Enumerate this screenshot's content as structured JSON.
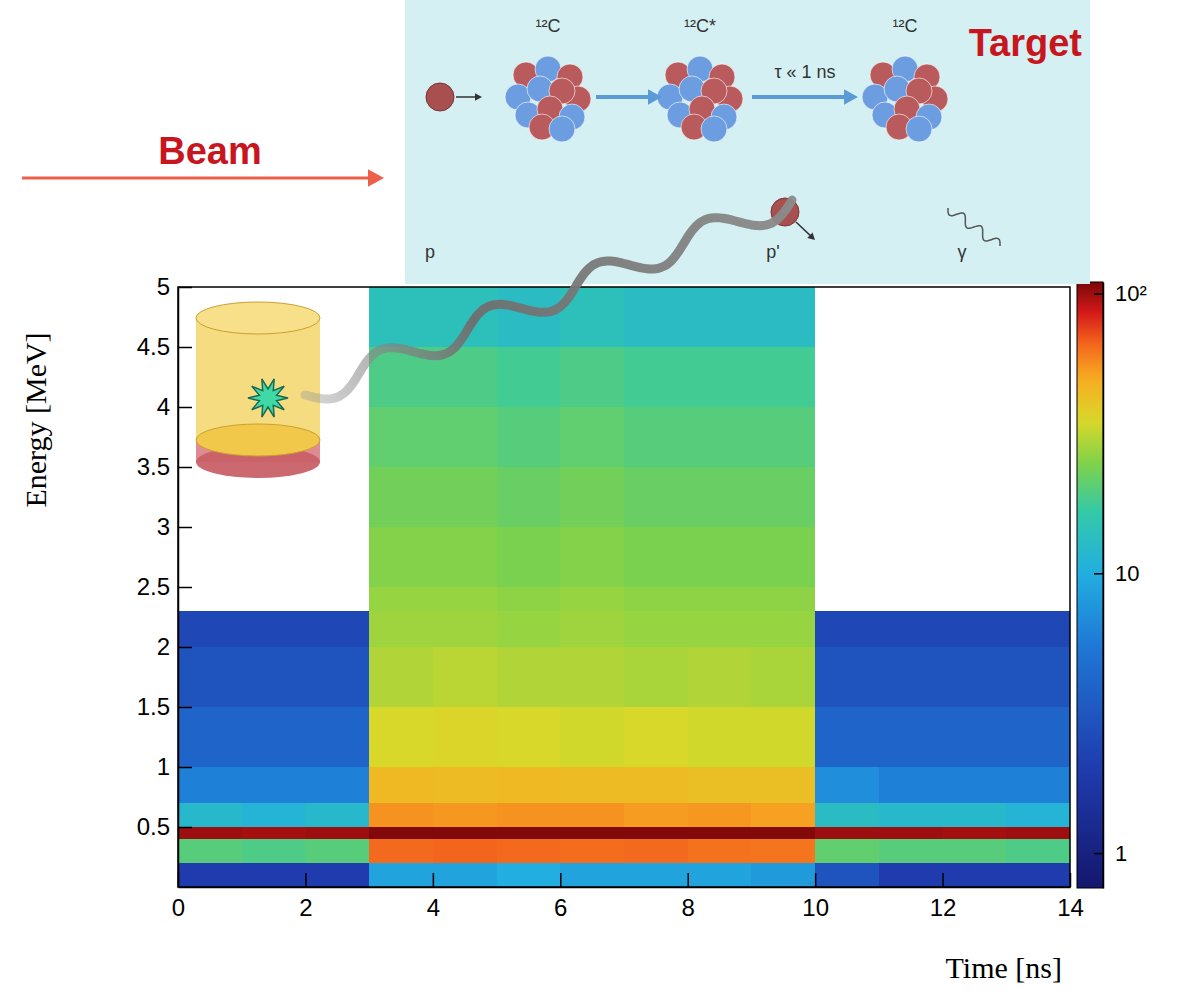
{
  "chart_data": {
    "type": "heatmap",
    "x_label": "Time [ns]",
    "y_label": "Energy [MeV]",
    "xlim": [
      0,
      14
    ],
    "ylim": [
      0,
      5
    ],
    "xticks": [
      0,
      2,
      4,
      6,
      8,
      10,
      12,
      14
    ],
    "yticks": [
      0.5,
      1,
      1.5,
      2,
      2.5,
      3,
      3.5,
      4,
      4.5,
      5
    ],
    "grid": false,
    "x_bins": [
      0,
      1,
      2,
      3,
      4,
      5,
      6,
      7,
      8,
      9,
      10,
      11,
      12,
      13,
      14
    ],
    "y_bins": [
      0,
      0.2,
      0.4,
      0.5,
      0.7,
      1,
      1.5,
      2,
      2.3,
      2.5,
      3,
      3.5,
      4,
      4.5,
      5
    ],
    "cells": [
      [
        2,
        2,
        2,
        9,
        9,
        10,
        9,
        9,
        9,
        8,
        3,
        2,
        2,
        2
      ],
      [
        20,
        19,
        20,
        65,
        66,
        65,
        64,
        65,
        63,
        62,
        21,
        20,
        20,
        19
      ],
      [
        100,
        98,
        100,
        108,
        108,
        108,
        108,
        108,
        108,
        108,
        100,
        100,
        98,
        100
      ],
      [
        12,
        11,
        12,
        55,
        54,
        55,
        55,
        53,
        54,
        52,
        13,
        12,
        12,
        11
      ],
      [
        6,
        6,
        6,
        45,
        44,
        45,
        44,
        44,
        43,
        43,
        7,
        6,
        6,
        6
      ],
      [
        4,
        4,
        4,
        35,
        36,
        35,
        34,
        35,
        34,
        34,
        4,
        4,
        4,
        4
      ],
      [
        3,
        3,
        3,
        30,
        31,
        30,
        30,
        29,
        30,
        29,
        3,
        3,
        3,
        3
      ],
      [
        2.5,
        2.5,
        2.5,
        28,
        28,
        27,
        28,
        27,
        27,
        27,
        2.5,
        2.5,
        2.5,
        2.5
      ],
      [
        null,
        null,
        null,
        27,
        27,
        26,
        27,
        26,
        26,
        26,
        null,
        null,
        null,
        null
      ],
      [
        null,
        null,
        null,
        25,
        25,
        24,
        25,
        24,
        24,
        24,
        null,
        null,
        null,
        null
      ],
      [
        null,
        null,
        null,
        23,
        23,
        22,
        23,
        22,
        22,
        22,
        null,
        null,
        null,
        null
      ],
      [
        null,
        null,
        null,
        21,
        21,
        20,
        21,
        20,
        20,
        20,
        null,
        null,
        null,
        null
      ],
      [
        null,
        null,
        null,
        19,
        19,
        18,
        19,
        18,
        18,
        18,
        null,
        null,
        null,
        null
      ],
      [
        null,
        null,
        null,
        14,
        14,
        13,
        14,
        13,
        13,
        13,
        null,
        null,
        null,
        null
      ]
    ],
    "colorbar": {
      "range": [
        0.75,
        110
      ],
      "ticks": [
        1,
        10,
        {
          "value": 100,
          "label": "10²"
        }
      ],
      "log": true
    }
  },
  "diagram": {
    "beam": "Beam",
    "target": "Target",
    "incoming": "p",
    "nuclei": [
      "¹²C",
      "¹²C*",
      "¹²C"
    ],
    "lifetime": "τ « 1 ns",
    "outgoing": "p'",
    "photon": "γ"
  }
}
